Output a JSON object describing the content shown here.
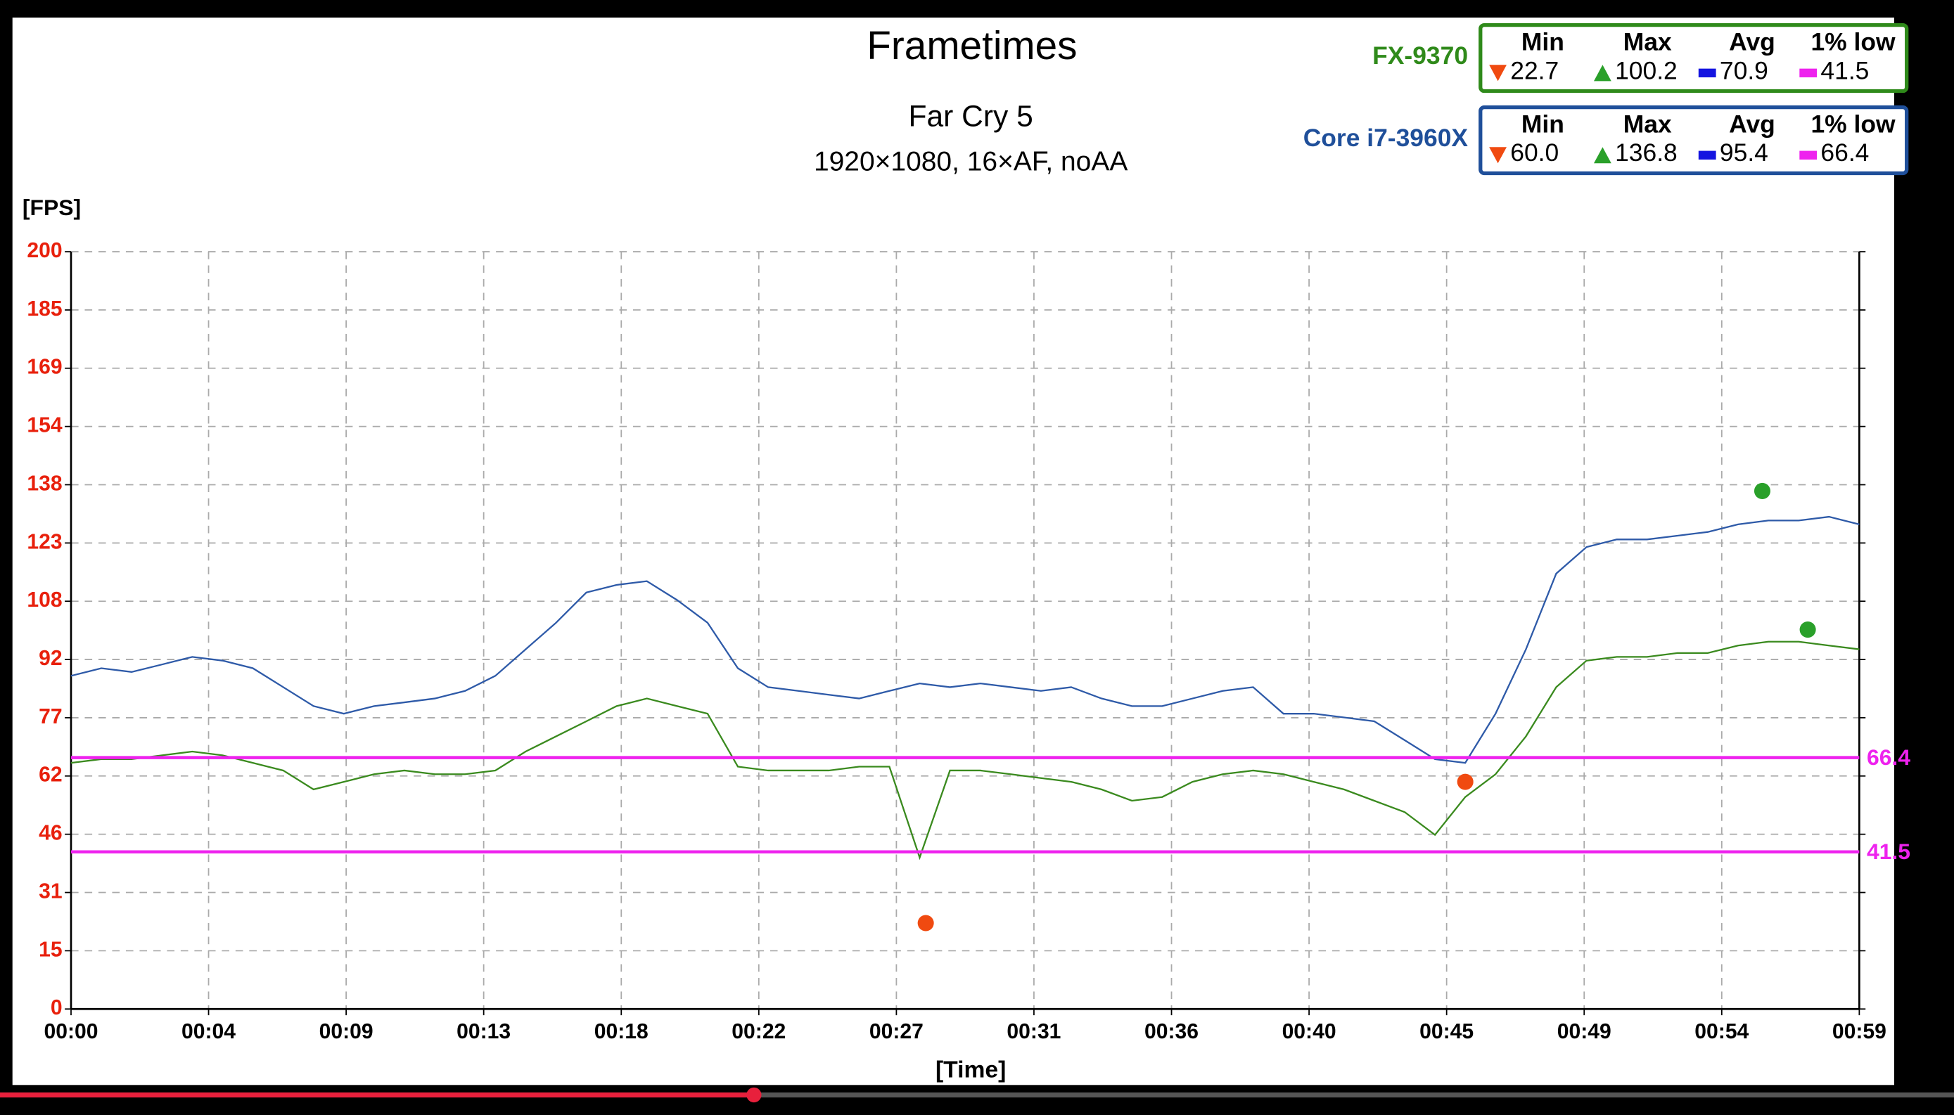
{
  "chart_data": {
    "type": "line",
    "title": "Frametimes",
    "subtitle": "Far Cry 5",
    "settings_text": "1920×1080, 16×AF, noAA",
    "ylabel": "[FPS]",
    "xlabel": "[Time]",
    "grid": true,
    "xlim": [
      0,
      59
    ],
    "ylim": [
      0,
      200
    ],
    "xticks": [
      {
        "value": 0,
        "label": "00:00"
      },
      {
        "value": 4.538,
        "label": "00:04"
      },
      {
        "value": 9.077,
        "label": "00:09"
      },
      {
        "value": 13.615,
        "label": "00:13"
      },
      {
        "value": 18.154,
        "label": "00:18"
      },
      {
        "value": 22.692,
        "label": "00:22"
      },
      {
        "value": 27.231,
        "label": "00:27"
      },
      {
        "value": 31.769,
        "label": "00:31"
      },
      {
        "value": 36.308,
        "label": "00:36"
      },
      {
        "value": 40.846,
        "label": "00:40"
      },
      {
        "value": 45.385,
        "label": "00:45"
      },
      {
        "value": 49.923,
        "label": "00:49"
      },
      {
        "value": 54.462,
        "label": "00:54"
      },
      {
        "value": 59,
        "label": "00:59"
      }
    ],
    "yticks": [
      0,
      {
        "value": 15.385,
        "label": "15"
      },
      {
        "value": 30.769,
        "label": "31"
      },
      {
        "value": 46.154,
        "label": "46"
      },
      {
        "value": 61.538,
        "label": "62"
      },
      {
        "value": 76.923,
        "label": "77"
      },
      {
        "value": 92.308,
        "label": "92"
      },
      {
        "value": 107.692,
        "label": "108"
      },
      {
        "value": 123.077,
        "label": "123"
      },
      {
        "value": 138.462,
        "label": "138"
      },
      {
        "value": 153.846,
        "label": "154"
      },
      {
        "value": 169.231,
        "label": "169"
      },
      {
        "value": 184.615,
        "label": "185"
      },
      200
    ],
    "stats_headers": [
      "Min",
      "Max",
      "Avg",
      "1% low"
    ],
    "x": [
      0,
      1,
      2,
      3,
      4,
      5,
      6,
      7,
      8,
      9,
      10,
      11,
      12,
      13,
      14,
      15,
      16,
      17,
      18,
      19,
      20,
      21,
      22,
      23,
      24,
      25,
      26,
      27,
      28,
      29,
      30,
      31,
      32,
      33,
      34,
      35,
      36,
      37,
      38,
      39,
      40,
      41,
      42,
      43,
      44,
      45,
      46,
      47,
      48,
      49,
      50,
      51,
      52,
      53,
      54,
      55,
      56,
      57,
      58,
      59
    ],
    "series": [
      {
        "name": "FX-9370",
        "color": "#3a8a1e",
        "box_color": "#2f8a1a",
        "values": [
          65,
          66,
          66,
          67,
          68,
          67,
          65,
          63,
          58,
          60,
          62,
          63,
          62,
          62,
          63,
          68,
          72,
          76,
          80,
          82,
          80,
          78,
          64,
          63,
          63,
          63,
          64,
          64,
          40,
          63,
          63,
          62,
          61,
          60,
          58,
          55,
          56,
          60,
          62,
          63,
          62,
          60,
          58,
          55,
          52,
          46,
          56,
          62,
          72,
          85,
          92,
          93,
          93,
          94,
          94,
          96,
          97,
          97,
          96,
          95
        ],
        "stats": {
          "values": [
            22.7,
            100.2,
            70.9,
            41.5
          ],
          "value_labels": [
            "22.7",
            "100.2",
            "70.9",
            "41.5"
          ]
        },
        "min_x": 28.2,
        "max_x": 57.3
      },
      {
        "name": "Core i7-3960X",
        "color": "#2e5aa8",
        "box_color": "#1f4f9a",
        "values": [
          88,
          90,
          89,
          91,
          93,
          92,
          90,
          85,
          80,
          78,
          80,
          81,
          82,
          84,
          88,
          95,
          102,
          110,
          112,
          113,
          108,
          102,
          90,
          85,
          84,
          83,
          82,
          84,
          86,
          85,
          86,
          85,
          84,
          85,
          82,
          80,
          80,
          82,
          84,
          85,
          78,
          78,
          77,
          76,
          71,
          66,
          65,
          78,
          95,
          115,
          122,
          124,
          124,
          125,
          126,
          128,
          129,
          129,
          130,
          128
        ],
        "stats": {
          "values": [
            60.0,
            136.8,
            95.4,
            66.4
          ],
          "value_labels": [
            "60.0",
            "136.8",
            "95.4",
            "66.4"
          ]
        },
        "min_x": 46.0,
        "max_x": 55.8
      }
    ]
  }
}
